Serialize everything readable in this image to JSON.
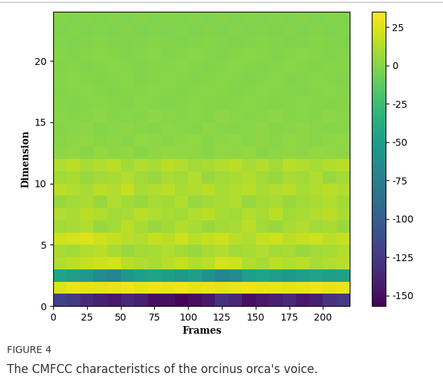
{
  "chart_data": {
    "type": "heatmap",
    "figure_label": "FIGURE 4",
    "caption": "The CMFCC characteristics of the orcinus orca's voice.",
    "x_label": "Frames",
    "y_label": "Dimension",
    "xlim": [
      0,
      220
    ],
    "xticks": [
      0,
      25,
      50,
      75,
      100,
      125,
      150,
      175,
      200
    ],
    "ylim": [
      0,
      24
    ],
    "yticks": [
      0,
      5,
      10,
      15,
      20
    ],
    "colorbar_range": [
      -157,
      35
    ],
    "colorbar_ticks": [
      25,
      0,
      -25,
      -50,
      -75,
      -100,
      -125,
      -150
    ],
    "cells": [
      [
        -120,
        -125,
        -135,
        -140,
        -145,
        -135,
        -140,
        -150,
        -150,
        -155,
        -150,
        -145,
        -130,
        -135,
        -150,
        -145,
        -140,
        -135,
        -145,
        -140,
        -130,
        -125
      ],
      [
        25,
        28,
        27,
        26,
        28,
        30,
        27,
        29,
        28,
        30,
        27,
        28,
        26,
        28,
        29,
        27,
        28,
        27,
        28,
        29,
        27,
        28
      ],
      [
        -45,
        -50,
        -55,
        -65,
        -70,
        -55,
        -50,
        -45,
        -50,
        -55,
        -50,
        -60,
        -70,
        -65,
        -50,
        -45,
        -50,
        -55,
        -50,
        -45,
        -50,
        -48
      ],
      [
        12,
        15,
        18,
        20,
        22,
        15,
        12,
        10,
        14,
        18,
        12,
        15,
        22,
        20,
        12,
        10,
        15,
        12,
        14,
        10,
        12,
        15
      ],
      [
        10,
        8,
        12,
        15,
        10,
        5,
        8,
        10,
        12,
        8,
        5,
        10,
        12,
        8,
        10,
        12,
        8,
        10,
        5,
        8,
        10,
        12
      ],
      [
        20,
        22,
        25,
        20,
        18,
        15,
        12,
        18,
        15,
        20,
        15,
        18,
        20,
        15,
        12,
        18,
        20,
        15,
        18,
        20,
        15,
        18
      ],
      [
        8,
        10,
        12,
        5,
        8,
        15,
        10,
        5,
        8,
        12,
        10,
        5,
        8,
        10,
        15,
        8,
        5,
        10,
        12,
        8,
        10,
        5
      ],
      [
        12,
        10,
        15,
        12,
        8,
        10,
        15,
        12,
        10,
        8,
        12,
        15,
        10,
        8,
        12,
        10,
        15,
        8,
        10,
        12,
        15,
        10
      ],
      [
        5,
        8,
        10,
        5,
        12,
        8,
        5,
        10,
        8,
        12,
        5,
        8,
        10,
        12,
        5,
        8,
        10,
        5,
        8,
        10,
        12,
        8
      ],
      [
        15,
        12,
        10,
        15,
        12,
        18,
        10,
        12,
        15,
        10,
        12,
        15,
        10,
        12,
        15,
        10,
        12,
        15,
        10,
        12,
        15,
        12
      ],
      [
        8,
        10,
        5,
        8,
        10,
        12,
        8,
        5,
        10,
        8,
        12,
        5,
        8,
        10,
        12,
        8,
        5,
        10,
        8,
        12,
        5,
        8
      ],
      [
        12,
        15,
        10,
        12,
        15,
        8,
        12,
        10,
        15,
        12,
        8,
        10,
        12,
        15,
        10,
        12,
        8,
        15,
        12,
        10,
        12,
        15
      ],
      [
        2,
        3,
        1,
        4,
        2,
        3,
        1,
        2,
        4,
        3,
        2,
        1,
        3,
        2,
        4,
        1,
        2,
        3,
        2,
        4,
        3,
        2
      ],
      [
        1,
        2,
        3,
        1,
        2,
        1,
        3,
        2,
        1,
        2,
        3,
        1,
        2,
        3,
        1,
        2,
        1,
        3,
        2,
        1,
        2,
        3
      ],
      [
        0,
        1,
        2,
        0,
        1,
        2,
        1,
        0,
        2,
        1,
        0,
        2,
        1,
        0,
        1,
        2,
        0,
        1,
        2,
        1,
        0,
        1
      ],
      [
        1,
        0,
        1,
        2,
        0,
        1,
        0,
        2,
        1,
        0,
        1,
        0,
        2,
        1,
        0,
        1,
        2,
        0,
        1,
        0,
        2,
        1
      ],
      [
        0,
        -1,
        0,
        1,
        0,
        -1,
        1,
        0,
        -1,
        0,
        1,
        0,
        -1,
        0,
        1,
        0,
        -1,
        0,
        1,
        0,
        -1,
        0
      ],
      [
        -1,
        0,
        1,
        0,
        -1,
        0,
        0,
        1,
        0,
        -1,
        0,
        1,
        0,
        -1,
        0,
        1,
        0,
        0,
        -1,
        0,
        1,
        0
      ],
      [
        0,
        1,
        0,
        -1,
        0,
        1,
        -1,
        0,
        1,
        0,
        -1,
        0,
        1,
        0,
        -1,
        0,
        1,
        -1,
        0,
        1,
        0,
        -1
      ],
      [
        -1,
        0,
        -1,
        0,
        1,
        0,
        -1,
        0,
        0,
        1,
        0,
        -1,
        0,
        1,
        0,
        -1,
        0,
        1,
        0,
        -1,
        0,
        0
      ],
      [
        0,
        -1,
        0,
        1,
        0,
        -1,
        0,
        1,
        -1,
        0,
        1,
        0,
        -1,
        0,
        1,
        0,
        -1,
        0,
        1,
        0,
        -1,
        0
      ],
      [
        -1,
        -2,
        -1,
        0,
        -1,
        -2,
        -1,
        0,
        -1,
        -2,
        -1,
        0,
        -1,
        -2,
        -1,
        0,
        -1,
        -2,
        -1,
        0,
        -1,
        -2
      ],
      [
        -2,
        -1,
        -2,
        -1,
        -2,
        -1,
        -2,
        -1,
        -2,
        -1,
        -2,
        -1,
        -2,
        -1,
        -2,
        -1,
        -2,
        -1,
        -2,
        -1,
        -2,
        -1
      ],
      [
        -1,
        -2,
        -1,
        -2,
        -1,
        -2,
        -1,
        -2,
        -1,
        -2,
        -1,
        -2,
        -1,
        -2,
        -1,
        -2,
        -1,
        -2,
        -1,
        -2,
        -1,
        -2
      ]
    ]
  }
}
